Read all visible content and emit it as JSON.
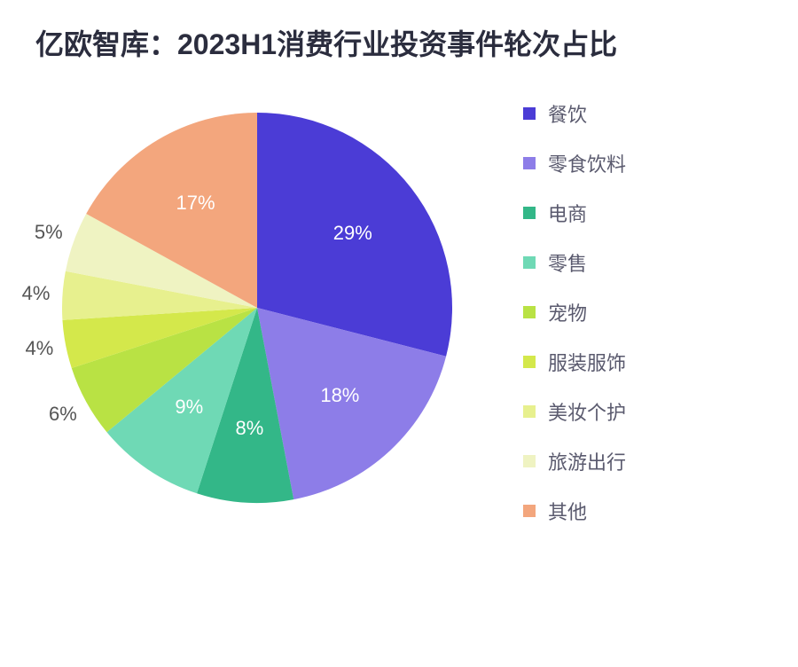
{
  "title": "亿欧智库：2023H1消费行业投资事件轮次占比",
  "chart": {
    "type": "pie",
    "background_color": "#ffffff",
    "title_fontsize": 32,
    "title_color": "#2b2d3e",
    "label_fontsize": 22,
    "label_color": "#555555",
    "legend_fontsize": 22,
    "legend_color": "#5a5a6e",
    "legend_swatch_size": 14,
    "pie_radius": 220,
    "start_angle_deg": -90,
    "slices": [
      {
        "label": "餐饮",
        "value": 29,
        "display": "29%",
        "color": "#4b3cd6",
        "label_inside": true
      },
      {
        "label": "零食饮料",
        "value": 18,
        "display": "18%",
        "color": "#8d7de8",
        "label_inside": true
      },
      {
        "label": "电商",
        "value": 8,
        "display": "8%",
        "color": "#33b788",
        "label_inside": true
      },
      {
        "label": "零售",
        "value": 9,
        "display": "9%",
        "color": "#6fd9b5",
        "label_inside": true
      },
      {
        "label": "宠物",
        "value": 6,
        "display": "6%",
        "color": "#b9e244",
        "label_inside": false
      },
      {
        "label": "服装服饰",
        "value": 4,
        "display": "4%",
        "color": "#d4e84b",
        "label_inside": false
      },
      {
        "label": "美妆个护",
        "value": 4,
        "display": "4%",
        "color": "#e7f08e",
        "label_inside": false
      },
      {
        "label": "旅游出行",
        "value": 5,
        "display": "5%",
        "color": "#eff3c2",
        "label_inside": false
      },
      {
        "label": "其他",
        "value": 17,
        "display": "17%",
        "color": "#f3a67d",
        "label_inside": true
      }
    ]
  }
}
